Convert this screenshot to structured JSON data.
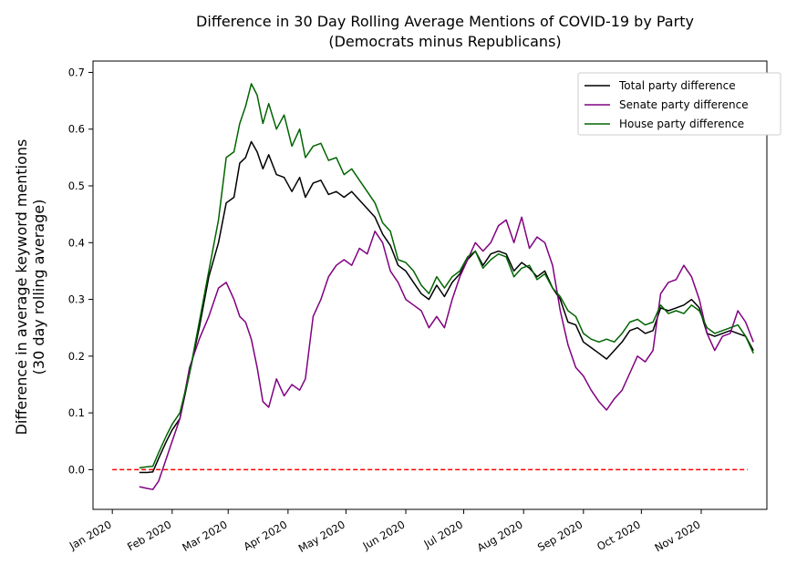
{
  "chart_data": {
    "type": "line",
    "title": "Difference in 30 Day Rolling Average Mentions of COVID-19 by Party",
    "subtitle": "(Democrats minus Republicans)",
    "xlabel": "",
    "ylabel": "Difference in average keyword mentions",
    "ylabel2": "(30 day rolling average)",
    "x_ticks": [
      "Jan 2020",
      "Feb 2020",
      "Mar 2020",
      "Apr 2020",
      "May 2020",
      "Jun 2020",
      "Jul 2020",
      "Aug 2020",
      "Sep 2020",
      "Oct 2020",
      "Nov 2020"
    ],
    "y_ticks": [
      "0.0",
      "0.1",
      "0.2",
      "0.3",
      "0.4",
      "0.5",
      "0.6",
      "0.7"
    ],
    "xlim": [
      "2019-12-22",
      "2020-12-05"
    ],
    "ylim": [
      -0.07,
      0.72
    ],
    "legend_position": "top-right",
    "grid": false,
    "reference_line": {
      "y": 0.0,
      "x_start": "2020-01-01",
      "x_end": "2020-11-25",
      "color": "#ff0000",
      "style": "dashed"
    },
    "series": [
      {
        "name": "Total party difference",
        "color": "#000000",
        "points": [
          [
            "2020-01-15",
            -0.005
          ],
          [
            "2020-01-19",
            -0.005
          ],
          [
            "2020-01-22",
            -0.004
          ],
          [
            "2020-01-25",
            0.02
          ],
          [
            "2020-01-29",
            0.05
          ],
          [
            "2020-02-01",
            0.07
          ],
          [
            "2020-02-05",
            0.09
          ],
          [
            "2020-02-10",
            0.17
          ],
          [
            "2020-02-15",
            0.25
          ],
          [
            "2020-02-20",
            0.34
          ],
          [
            "2020-02-25",
            0.4
          ],
          [
            "2020-02-29",
            0.47
          ],
          [
            "2020-03-04",
            0.48
          ],
          [
            "2020-03-07",
            0.54
          ],
          [
            "2020-03-10",
            0.55
          ],
          [
            "2020-03-13",
            0.578
          ],
          [
            "2020-03-16",
            0.56
          ],
          [
            "2020-03-19",
            0.53
          ],
          [
            "2020-03-22",
            0.555
          ],
          [
            "2020-03-26",
            0.52
          ],
          [
            "2020-03-30",
            0.515
          ],
          [
            "2020-04-03",
            0.49
          ],
          [
            "2020-04-07",
            0.515
          ],
          [
            "2020-04-10",
            0.48
          ],
          [
            "2020-04-14",
            0.505
          ],
          [
            "2020-04-18",
            0.51
          ],
          [
            "2020-04-22",
            0.485
          ],
          [
            "2020-04-26",
            0.49
          ],
          [
            "2020-04-30",
            0.48
          ],
          [
            "2020-05-04",
            0.49
          ],
          [
            "2020-05-08",
            0.475
          ],
          [
            "2020-05-12",
            0.46
          ],
          [
            "2020-05-16",
            0.445
          ],
          [
            "2020-05-20",
            0.415
          ],
          [
            "2020-05-24",
            0.395
          ],
          [
            "2020-05-28",
            0.36
          ],
          [
            "2020-06-01",
            0.35
          ],
          [
            "2020-06-05",
            0.33
          ],
          [
            "2020-06-09",
            0.31
          ],
          [
            "2020-06-13",
            0.3
          ],
          [
            "2020-06-17",
            0.325
          ],
          [
            "2020-06-21",
            0.305
          ],
          [
            "2020-06-25",
            0.33
          ],
          [
            "2020-06-29",
            0.345
          ],
          [
            "2020-07-03",
            0.37
          ],
          [
            "2020-07-07",
            0.385
          ],
          [
            "2020-07-11",
            0.36
          ],
          [
            "2020-07-15",
            0.38
          ],
          [
            "2020-07-19",
            0.385
          ],
          [
            "2020-07-23",
            0.38
          ],
          [
            "2020-07-27",
            0.35
          ],
          [
            "2020-07-31",
            0.365
          ],
          [
            "2020-08-04",
            0.355
          ],
          [
            "2020-08-08",
            0.34
          ],
          [
            "2020-08-12",
            0.35
          ],
          [
            "2020-08-16",
            0.32
          ],
          [
            "2020-08-20",
            0.3
          ],
          [
            "2020-08-24",
            0.26
          ],
          [
            "2020-08-28",
            0.255
          ],
          [
            "2020-09-01",
            0.225
          ],
          [
            "2020-09-05",
            0.215
          ],
          [
            "2020-09-09",
            0.205
          ],
          [
            "2020-09-13",
            0.195
          ],
          [
            "2020-09-17",
            0.21
          ],
          [
            "2020-09-21",
            0.225
          ],
          [
            "2020-09-25",
            0.245
          ],
          [
            "2020-09-29",
            0.25
          ],
          [
            "2020-10-03",
            0.24
          ],
          [
            "2020-10-07",
            0.245
          ],
          [
            "2020-10-11",
            0.285
          ],
          [
            "2020-10-15",
            0.28
          ],
          [
            "2020-10-19",
            0.285
          ],
          [
            "2020-10-23",
            0.29
          ],
          [
            "2020-10-27",
            0.3
          ],
          [
            "2020-10-31",
            0.285
          ],
          [
            "2020-11-04",
            0.24
          ],
          [
            "2020-11-08",
            0.235
          ],
          [
            "2020-11-12",
            0.24
          ],
          [
            "2020-11-16",
            0.245
          ],
          [
            "2020-11-20",
            0.24
          ],
          [
            "2020-11-24",
            0.235
          ],
          [
            "2020-11-28",
            0.21
          ]
        ]
      },
      {
        "name": "Senate party difference",
        "color": "#800080",
        "points": [
          [
            "2020-01-15",
            -0.03
          ],
          [
            "2020-01-19",
            -0.033
          ],
          [
            "2020-01-22",
            -0.035
          ],
          [
            "2020-01-25",
            -0.02
          ],
          [
            "2020-01-29",
            0.02
          ],
          [
            "2020-02-01",
            0.05
          ],
          [
            "2020-02-05",
            0.09
          ],
          [
            "2020-02-10",
            0.18
          ],
          [
            "2020-02-15",
            0.23
          ],
          [
            "2020-02-20",
            0.27
          ],
          [
            "2020-02-25",
            0.32
          ],
          [
            "2020-02-29",
            0.33
          ],
          [
            "2020-03-04",
            0.3
          ],
          [
            "2020-03-07",
            0.27
          ],
          [
            "2020-03-10",
            0.26
          ],
          [
            "2020-03-13",
            0.23
          ],
          [
            "2020-03-16",
            0.18
          ],
          [
            "2020-03-19",
            0.12
          ],
          [
            "2020-03-22",
            0.11
          ],
          [
            "2020-03-26",
            0.16
          ],
          [
            "2020-03-30",
            0.13
          ],
          [
            "2020-04-03",
            0.15
          ],
          [
            "2020-04-07",
            0.14
          ],
          [
            "2020-04-10",
            0.16
          ],
          [
            "2020-04-14",
            0.27
          ],
          [
            "2020-04-18",
            0.3
          ],
          [
            "2020-04-22",
            0.34
          ],
          [
            "2020-04-26",
            0.36
          ],
          [
            "2020-04-30",
            0.37
          ],
          [
            "2020-05-04",
            0.36
          ],
          [
            "2020-05-08",
            0.39
          ],
          [
            "2020-05-12",
            0.38
          ],
          [
            "2020-05-16",
            0.42
          ],
          [
            "2020-05-20",
            0.4
          ],
          [
            "2020-05-24",
            0.35
          ],
          [
            "2020-05-28",
            0.33
          ],
          [
            "2020-06-01",
            0.3
          ],
          [
            "2020-06-05",
            0.29
          ],
          [
            "2020-06-09",
            0.28
          ],
          [
            "2020-06-13",
            0.25
          ],
          [
            "2020-06-17",
            0.27
          ],
          [
            "2020-06-21",
            0.25
          ],
          [
            "2020-06-25",
            0.3
          ],
          [
            "2020-06-29",
            0.34
          ],
          [
            "2020-07-03",
            0.37
          ],
          [
            "2020-07-07",
            0.4
          ],
          [
            "2020-07-11",
            0.385
          ],
          [
            "2020-07-15",
            0.4
          ],
          [
            "2020-07-19",
            0.43
          ],
          [
            "2020-07-23",
            0.44
          ],
          [
            "2020-07-27",
            0.4
          ],
          [
            "2020-07-31",
            0.445
          ],
          [
            "2020-08-04",
            0.39
          ],
          [
            "2020-08-08",
            0.41
          ],
          [
            "2020-08-12",
            0.4
          ],
          [
            "2020-08-16",
            0.36
          ],
          [
            "2020-08-20",
            0.28
          ],
          [
            "2020-08-24",
            0.22
          ],
          [
            "2020-08-28",
            0.18
          ],
          [
            "2020-09-01",
            0.165
          ],
          [
            "2020-09-05",
            0.14
          ],
          [
            "2020-09-09",
            0.12
          ],
          [
            "2020-09-13",
            0.105
          ],
          [
            "2020-09-17",
            0.125
          ],
          [
            "2020-09-21",
            0.14
          ],
          [
            "2020-09-25",
            0.17
          ],
          [
            "2020-09-29",
            0.2
          ],
          [
            "2020-10-03",
            0.19
          ],
          [
            "2020-10-07",
            0.21
          ],
          [
            "2020-10-11",
            0.31
          ],
          [
            "2020-10-15",
            0.33
          ],
          [
            "2020-10-19",
            0.335
          ],
          [
            "2020-10-23",
            0.36
          ],
          [
            "2020-10-27",
            0.34
          ],
          [
            "2020-10-31",
            0.3
          ],
          [
            "2020-11-04",
            0.24
          ],
          [
            "2020-11-08",
            0.21
          ],
          [
            "2020-11-12",
            0.235
          ],
          [
            "2020-11-16",
            0.24
          ],
          [
            "2020-11-20",
            0.28
          ],
          [
            "2020-11-24",
            0.26
          ],
          [
            "2020-11-28",
            0.225
          ]
        ]
      },
      {
        "name": "House party difference",
        "color": "#006400",
        "points": [
          [
            "2020-01-15",
            0.003
          ],
          [
            "2020-01-19",
            0.005
          ],
          [
            "2020-01-22",
            0.006
          ],
          [
            "2020-01-25",
            0.03
          ],
          [
            "2020-01-29",
            0.06
          ],
          [
            "2020-02-01",
            0.08
          ],
          [
            "2020-02-05",
            0.1
          ],
          [
            "2020-02-10",
            0.17
          ],
          [
            "2020-02-15",
            0.26
          ],
          [
            "2020-02-20",
            0.35
          ],
          [
            "2020-02-25",
            0.44
          ],
          [
            "2020-02-29",
            0.55
          ],
          [
            "2020-03-04",
            0.56
          ],
          [
            "2020-03-07",
            0.61
          ],
          [
            "2020-03-10",
            0.64
          ],
          [
            "2020-03-13",
            0.68
          ],
          [
            "2020-03-16",
            0.66
          ],
          [
            "2020-03-19",
            0.61
          ],
          [
            "2020-03-22",
            0.645
          ],
          [
            "2020-03-26",
            0.6
          ],
          [
            "2020-03-30",
            0.625
          ],
          [
            "2020-04-03",
            0.57
          ],
          [
            "2020-04-07",
            0.6
          ],
          [
            "2020-04-10",
            0.55
          ],
          [
            "2020-04-14",
            0.57
          ],
          [
            "2020-04-18",
            0.575
          ],
          [
            "2020-04-22",
            0.545
          ],
          [
            "2020-04-26",
            0.55
          ],
          [
            "2020-04-30",
            0.52
          ],
          [
            "2020-05-04",
            0.53
          ],
          [
            "2020-05-08",
            0.51
          ],
          [
            "2020-05-12",
            0.49
          ],
          [
            "2020-05-16",
            0.47
          ],
          [
            "2020-05-20",
            0.435
          ],
          [
            "2020-05-24",
            0.42
          ],
          [
            "2020-05-28",
            0.37
          ],
          [
            "2020-06-01",
            0.365
          ],
          [
            "2020-06-05",
            0.35
          ],
          [
            "2020-06-09",
            0.325
          ],
          [
            "2020-06-13",
            0.31
          ],
          [
            "2020-06-17",
            0.34
          ],
          [
            "2020-06-21",
            0.32
          ],
          [
            "2020-06-25",
            0.34
          ],
          [
            "2020-06-29",
            0.35
          ],
          [
            "2020-07-03",
            0.375
          ],
          [
            "2020-07-07",
            0.385
          ],
          [
            "2020-07-11",
            0.355
          ],
          [
            "2020-07-15",
            0.37
          ],
          [
            "2020-07-19",
            0.38
          ],
          [
            "2020-07-23",
            0.375
          ],
          [
            "2020-07-27",
            0.34
          ],
          [
            "2020-07-31",
            0.355
          ],
          [
            "2020-08-04",
            0.36
          ],
          [
            "2020-08-08",
            0.335
          ],
          [
            "2020-08-12",
            0.345
          ],
          [
            "2020-08-16",
            0.32
          ],
          [
            "2020-08-20",
            0.305
          ],
          [
            "2020-08-24",
            0.28
          ],
          [
            "2020-08-28",
            0.27
          ],
          [
            "2020-09-01",
            0.24
          ],
          [
            "2020-09-05",
            0.23
          ],
          [
            "2020-09-09",
            0.225
          ],
          [
            "2020-09-13",
            0.23
          ],
          [
            "2020-09-17",
            0.225
          ],
          [
            "2020-09-21",
            0.24
          ],
          [
            "2020-09-25",
            0.26
          ],
          [
            "2020-09-29",
            0.265
          ],
          [
            "2020-10-03",
            0.255
          ],
          [
            "2020-10-07",
            0.26
          ],
          [
            "2020-10-11",
            0.29
          ],
          [
            "2020-10-15",
            0.275
          ],
          [
            "2020-10-19",
            0.28
          ],
          [
            "2020-10-23",
            0.275
          ],
          [
            "2020-10-27",
            0.29
          ],
          [
            "2020-10-31",
            0.28
          ],
          [
            "2020-11-04",
            0.25
          ],
          [
            "2020-11-08",
            0.24
          ],
          [
            "2020-11-12",
            0.245
          ],
          [
            "2020-11-16",
            0.25
          ],
          [
            "2020-11-20",
            0.255
          ],
          [
            "2020-11-24",
            0.235
          ],
          [
            "2020-11-28",
            0.205
          ]
        ]
      }
    ]
  }
}
